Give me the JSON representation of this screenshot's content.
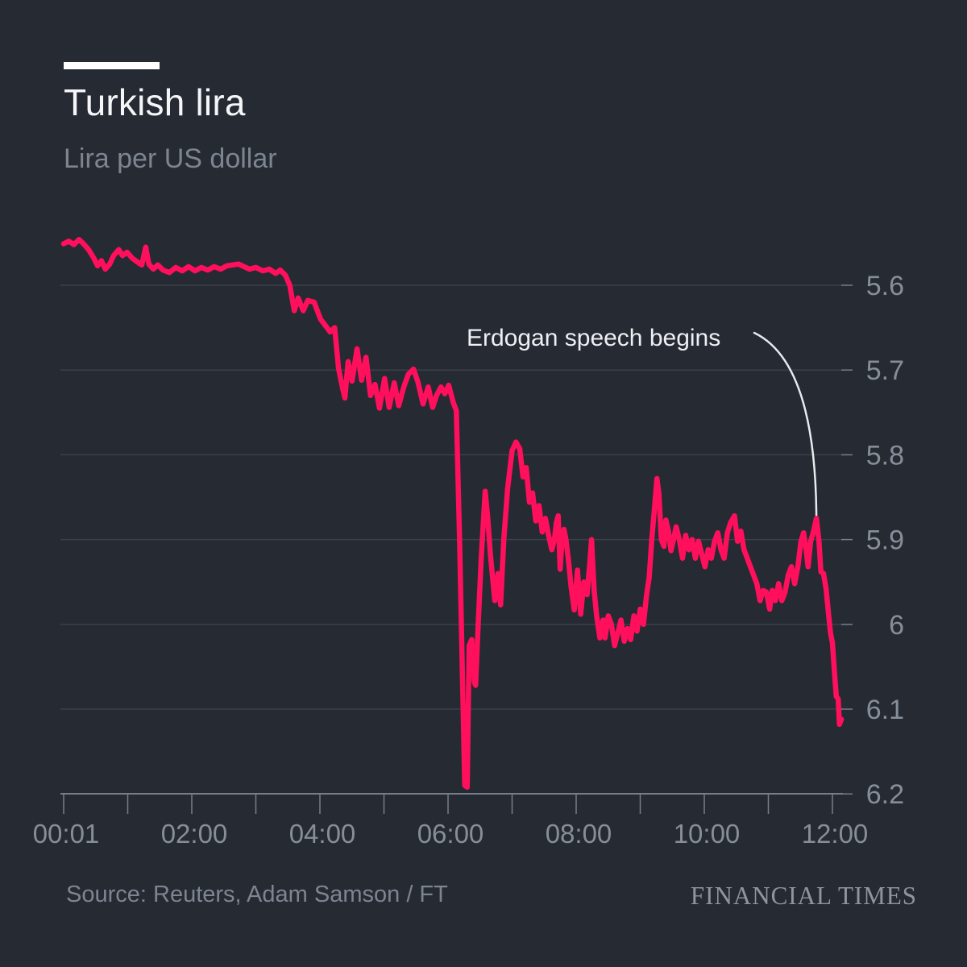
{
  "header": {
    "title": "Turkish lira",
    "subtitle": "Lira per US dollar"
  },
  "footer": {
    "source": "Source: Reuters, Adam Samson / FT",
    "logo": "FINANCIAL TIMES"
  },
  "colors": {
    "background": "#262a33",
    "line": "#ff0f5c",
    "accent_bar": "#ffffff",
    "gridline": "#3a404a",
    "axis": "#767e8b",
    "tick_label": "#868e99",
    "annotation_line": "#e8eaed"
  },
  "chart_data": {
    "type": "line",
    "title": "Turkish lira",
    "subtitle": "Lira per US dollar",
    "xlabel": "",
    "ylabel": "Lira per US dollar",
    "grid": "horizontal",
    "y_axis_side": "right",
    "y_axis_inverted": true,
    "y_domain": [
      5.54,
      6.2
    ],
    "x_domain_hours": [
      0,
      12.2
    ],
    "x_minor_tick_every_hours": 1,
    "x_ticks": [
      {
        "t": 0,
        "label": "00:01"
      },
      {
        "t": 2,
        "label": "02:00"
      },
      {
        "t": 4,
        "label": "04:00"
      },
      {
        "t": 6,
        "label": "06:00"
      },
      {
        "t": 8,
        "label": "08:00"
      },
      {
        "t": 10,
        "label": "10:00"
      },
      {
        "t": 12,
        "label": "12:00"
      }
    ],
    "y_ticks": [
      {
        "v": 5.6,
        "label": "5.6"
      },
      {
        "v": 5.7,
        "label": "5.7"
      },
      {
        "v": 5.8,
        "label": "5.8"
      },
      {
        "v": 5.9,
        "label": "5.9"
      },
      {
        "v": 6.0,
        "label": "6"
      },
      {
        "v": 6.1,
        "label": "6.1"
      },
      {
        "v": 6.2,
        "label": "6.2"
      }
    ],
    "annotation": {
      "text": "Erdogan speech begins",
      "target_t": 11.75,
      "target_v": 5.875
    },
    "series": [
      {
        "name": "Lira per US dollar",
        "points": [
          [
            0.0,
            5.551
          ],
          [
            0.08,
            5.548
          ],
          [
            0.16,
            5.552
          ],
          [
            0.24,
            5.546
          ],
          [
            0.31,
            5.551
          ],
          [
            0.39,
            5.558
          ],
          [
            0.47,
            5.568
          ],
          [
            0.53,
            5.577
          ],
          [
            0.59,
            5.571
          ],
          [
            0.65,
            5.581
          ],
          [
            0.72,
            5.575
          ],
          [
            0.78,
            5.565
          ],
          [
            0.86,
            5.558
          ],
          [
            0.92,
            5.565
          ],
          [
            0.99,
            5.561
          ],
          [
            1.07,
            5.568
          ],
          [
            1.14,
            5.572
          ],
          [
            1.22,
            5.576
          ],
          [
            1.28,
            5.555
          ],
          [
            1.33,
            5.575
          ],
          [
            1.4,
            5.581
          ],
          [
            1.47,
            5.576
          ],
          [
            1.55,
            5.582
          ],
          [
            1.65,
            5.585
          ],
          [
            1.75,
            5.579
          ],
          [
            1.85,
            5.583
          ],
          [
            1.95,
            5.578
          ],
          [
            2.05,
            5.583
          ],
          [
            2.15,
            5.579
          ],
          [
            2.25,
            5.582
          ],
          [
            2.35,
            5.578
          ],
          [
            2.45,
            5.581
          ],
          [
            2.55,
            5.577
          ],
          [
            2.73,
            5.575
          ],
          [
            2.9,
            5.581
          ],
          [
            3.0,
            5.579
          ],
          [
            3.11,
            5.583
          ],
          [
            3.21,
            5.581
          ],
          [
            3.31,
            5.586
          ],
          [
            3.38,
            5.582
          ],
          [
            3.46,
            5.588
          ],
          [
            3.53,
            5.6
          ],
          [
            3.6,
            5.63
          ],
          [
            3.66,
            5.615
          ],
          [
            3.74,
            5.63
          ],
          [
            3.81,
            5.618
          ],
          [
            3.91,
            5.62
          ],
          [
            4.01,
            5.64
          ],
          [
            4.09,
            5.648
          ],
          [
            4.16,
            5.655
          ],
          [
            4.23,
            5.65
          ],
          [
            4.29,
            5.698
          ],
          [
            4.35,
            5.72
          ],
          [
            4.39,
            5.733
          ],
          [
            4.44,
            5.69
          ],
          [
            4.5,
            5.713
          ],
          [
            4.58,
            5.675
          ],
          [
            4.65,
            5.712
          ],
          [
            4.72,
            5.685
          ],
          [
            4.79,
            5.73
          ],
          [
            4.86,
            5.717
          ],
          [
            4.93,
            5.745
          ],
          [
            5.01,
            5.71
          ],
          [
            5.08,
            5.744
          ],
          [
            5.16,
            5.715
          ],
          [
            5.23,
            5.742
          ],
          [
            5.31,
            5.72
          ],
          [
            5.38,
            5.705
          ],
          [
            5.46,
            5.699
          ],
          [
            5.53,
            5.714
          ],
          [
            5.61,
            5.74
          ],
          [
            5.69,
            5.72
          ],
          [
            5.76,
            5.744
          ],
          [
            5.82,
            5.73
          ],
          [
            5.89,
            5.72
          ],
          [
            5.95,
            5.728
          ],
          [
            6.01,
            5.718
          ],
          [
            6.08,
            5.738
          ],
          [
            6.13,
            5.748
          ],
          [
            6.18,
            5.9
          ],
          [
            6.23,
            6.08
          ],
          [
            6.26,
            6.19
          ],
          [
            6.3,
            6.192
          ],
          [
            6.33,
            6.025
          ],
          [
            6.37,
            6.018
          ],
          [
            6.41,
            6.068
          ],
          [
            6.43,
            6.072
          ],
          [
            6.47,
            6.0
          ],
          [
            6.52,
            5.92
          ],
          [
            6.58,
            5.843
          ],
          [
            6.62,
            5.875
          ],
          [
            6.66,
            5.917
          ],
          [
            6.73,
            5.972
          ],
          [
            6.78,
            5.94
          ],
          [
            6.82,
            5.977
          ],
          [
            6.87,
            5.9
          ],
          [
            6.93,
            5.84
          ],
          [
            7.0,
            5.795
          ],
          [
            7.06,
            5.785
          ],
          [
            7.12,
            5.793
          ],
          [
            7.17,
            5.826
          ],
          [
            7.22,
            5.815
          ],
          [
            7.27,
            5.856
          ],
          [
            7.32,
            5.845
          ],
          [
            7.37,
            5.878
          ],
          [
            7.42,
            5.86
          ],
          [
            7.47,
            5.891
          ],
          [
            7.52,
            5.875
          ],
          [
            7.57,
            5.895
          ],
          [
            7.62,
            5.912
          ],
          [
            7.66,
            5.9
          ],
          [
            7.69,
            5.88
          ],
          [
            7.72,
            5.872
          ],
          [
            7.75,
            5.935
          ],
          [
            7.78,
            5.9
          ],
          [
            7.81,
            5.888
          ],
          [
            7.84,
            5.9
          ],
          [
            7.88,
            5.925
          ],
          [
            7.92,
            5.955
          ],
          [
            7.97,
            5.983
          ],
          [
            8.02,
            5.936
          ],
          [
            8.07,
            5.988
          ],
          [
            8.12,
            5.95
          ],
          [
            8.17,
            5.965
          ],
          [
            8.21,
            5.93
          ],
          [
            8.24,
            5.9
          ],
          [
            8.28,
            5.96
          ],
          [
            8.32,
            5.99
          ],
          [
            8.37,
            6.016
          ],
          [
            8.42,
            5.995
          ],
          [
            8.45,
            6.016
          ],
          [
            8.5,
            5.99
          ],
          [
            8.55,
            6.0
          ],
          [
            8.6,
            6.025
          ],
          [
            8.65,
            6.01
          ],
          [
            8.7,
            5.995
          ],
          [
            8.75,
            6.02
          ],
          [
            8.8,
            6.005
          ],
          [
            8.85,
            6.018
          ],
          [
            8.9,
            5.99
          ],
          [
            8.95,
            6.008
          ],
          [
            9.0,
            5.982
          ],
          [
            9.05,
            6.0
          ],
          [
            9.1,
            5.965
          ],
          [
            9.14,
            5.945
          ],
          [
            9.18,
            5.9
          ],
          [
            9.22,
            5.865
          ],
          [
            9.26,
            5.828
          ],
          [
            9.29,
            5.845
          ],
          [
            9.33,
            5.9
          ],
          [
            9.37,
            5.908
          ],
          [
            9.4,
            5.877
          ],
          [
            9.44,
            5.89
          ],
          [
            9.48,
            5.913
          ],
          [
            9.52,
            5.9
          ],
          [
            9.56,
            5.885
          ],
          [
            9.61,
            5.9
          ],
          [
            9.66,
            5.922
          ],
          [
            9.71,
            5.895
          ],
          [
            9.76,
            5.912
          ],
          [
            9.81,
            5.9
          ],
          [
            9.86,
            5.922
          ],
          [
            9.91,
            5.902
          ],
          [
            9.96,
            5.917
          ],
          [
            10.01,
            5.932
          ],
          [
            10.06,
            5.912
          ],
          [
            10.11,
            5.922
          ],
          [
            10.16,
            5.902
          ],
          [
            10.21,
            5.892
          ],
          [
            10.26,
            5.912
          ],
          [
            10.31,
            5.922
          ],
          [
            10.36,
            5.892
          ],
          [
            10.41,
            5.88
          ],
          [
            10.47,
            5.872
          ],
          [
            10.52,
            5.902
          ],
          [
            10.57,
            5.89
          ],
          [
            10.62,
            5.912
          ],
          [
            10.67,
            5.922
          ],
          [
            10.72,
            5.932
          ],
          [
            10.77,
            5.942
          ],
          [
            10.82,
            5.952
          ],
          [
            10.87,
            5.972
          ],
          [
            10.92,
            5.96
          ],
          [
            10.97,
            5.962
          ],
          [
            11.02,
            5.982
          ],
          [
            11.06,
            5.96
          ],
          [
            11.11,
            5.972
          ],
          [
            11.16,
            5.952
          ],
          [
            11.21,
            5.972
          ],
          [
            11.26,
            5.962
          ],
          [
            11.31,
            5.942
          ],
          [
            11.36,
            5.932
          ],
          [
            11.41,
            5.952
          ],
          [
            11.46,
            5.932
          ],
          [
            11.51,
            5.902
          ],
          [
            11.55,
            5.892
          ],
          [
            11.59,
            5.912
          ],
          [
            11.62,
            5.932
          ],
          [
            11.66,
            5.902
          ],
          [
            11.7,
            5.892
          ],
          [
            11.75,
            5.875
          ],
          [
            11.79,
            5.902
          ],
          [
            11.82,
            5.938
          ],
          [
            11.86,
            5.94
          ],
          [
            11.9,
            5.958
          ],
          [
            11.94,
            5.988
          ],
          [
            11.97,
            6.01
          ],
          [
            12.0,
            6.022
          ],
          [
            12.03,
            6.055
          ],
          [
            12.06,
            6.085
          ],
          [
            12.09,
            6.088
          ],
          [
            12.11,
            6.118
          ],
          [
            12.14,
            6.112
          ]
        ]
      }
    ]
  }
}
